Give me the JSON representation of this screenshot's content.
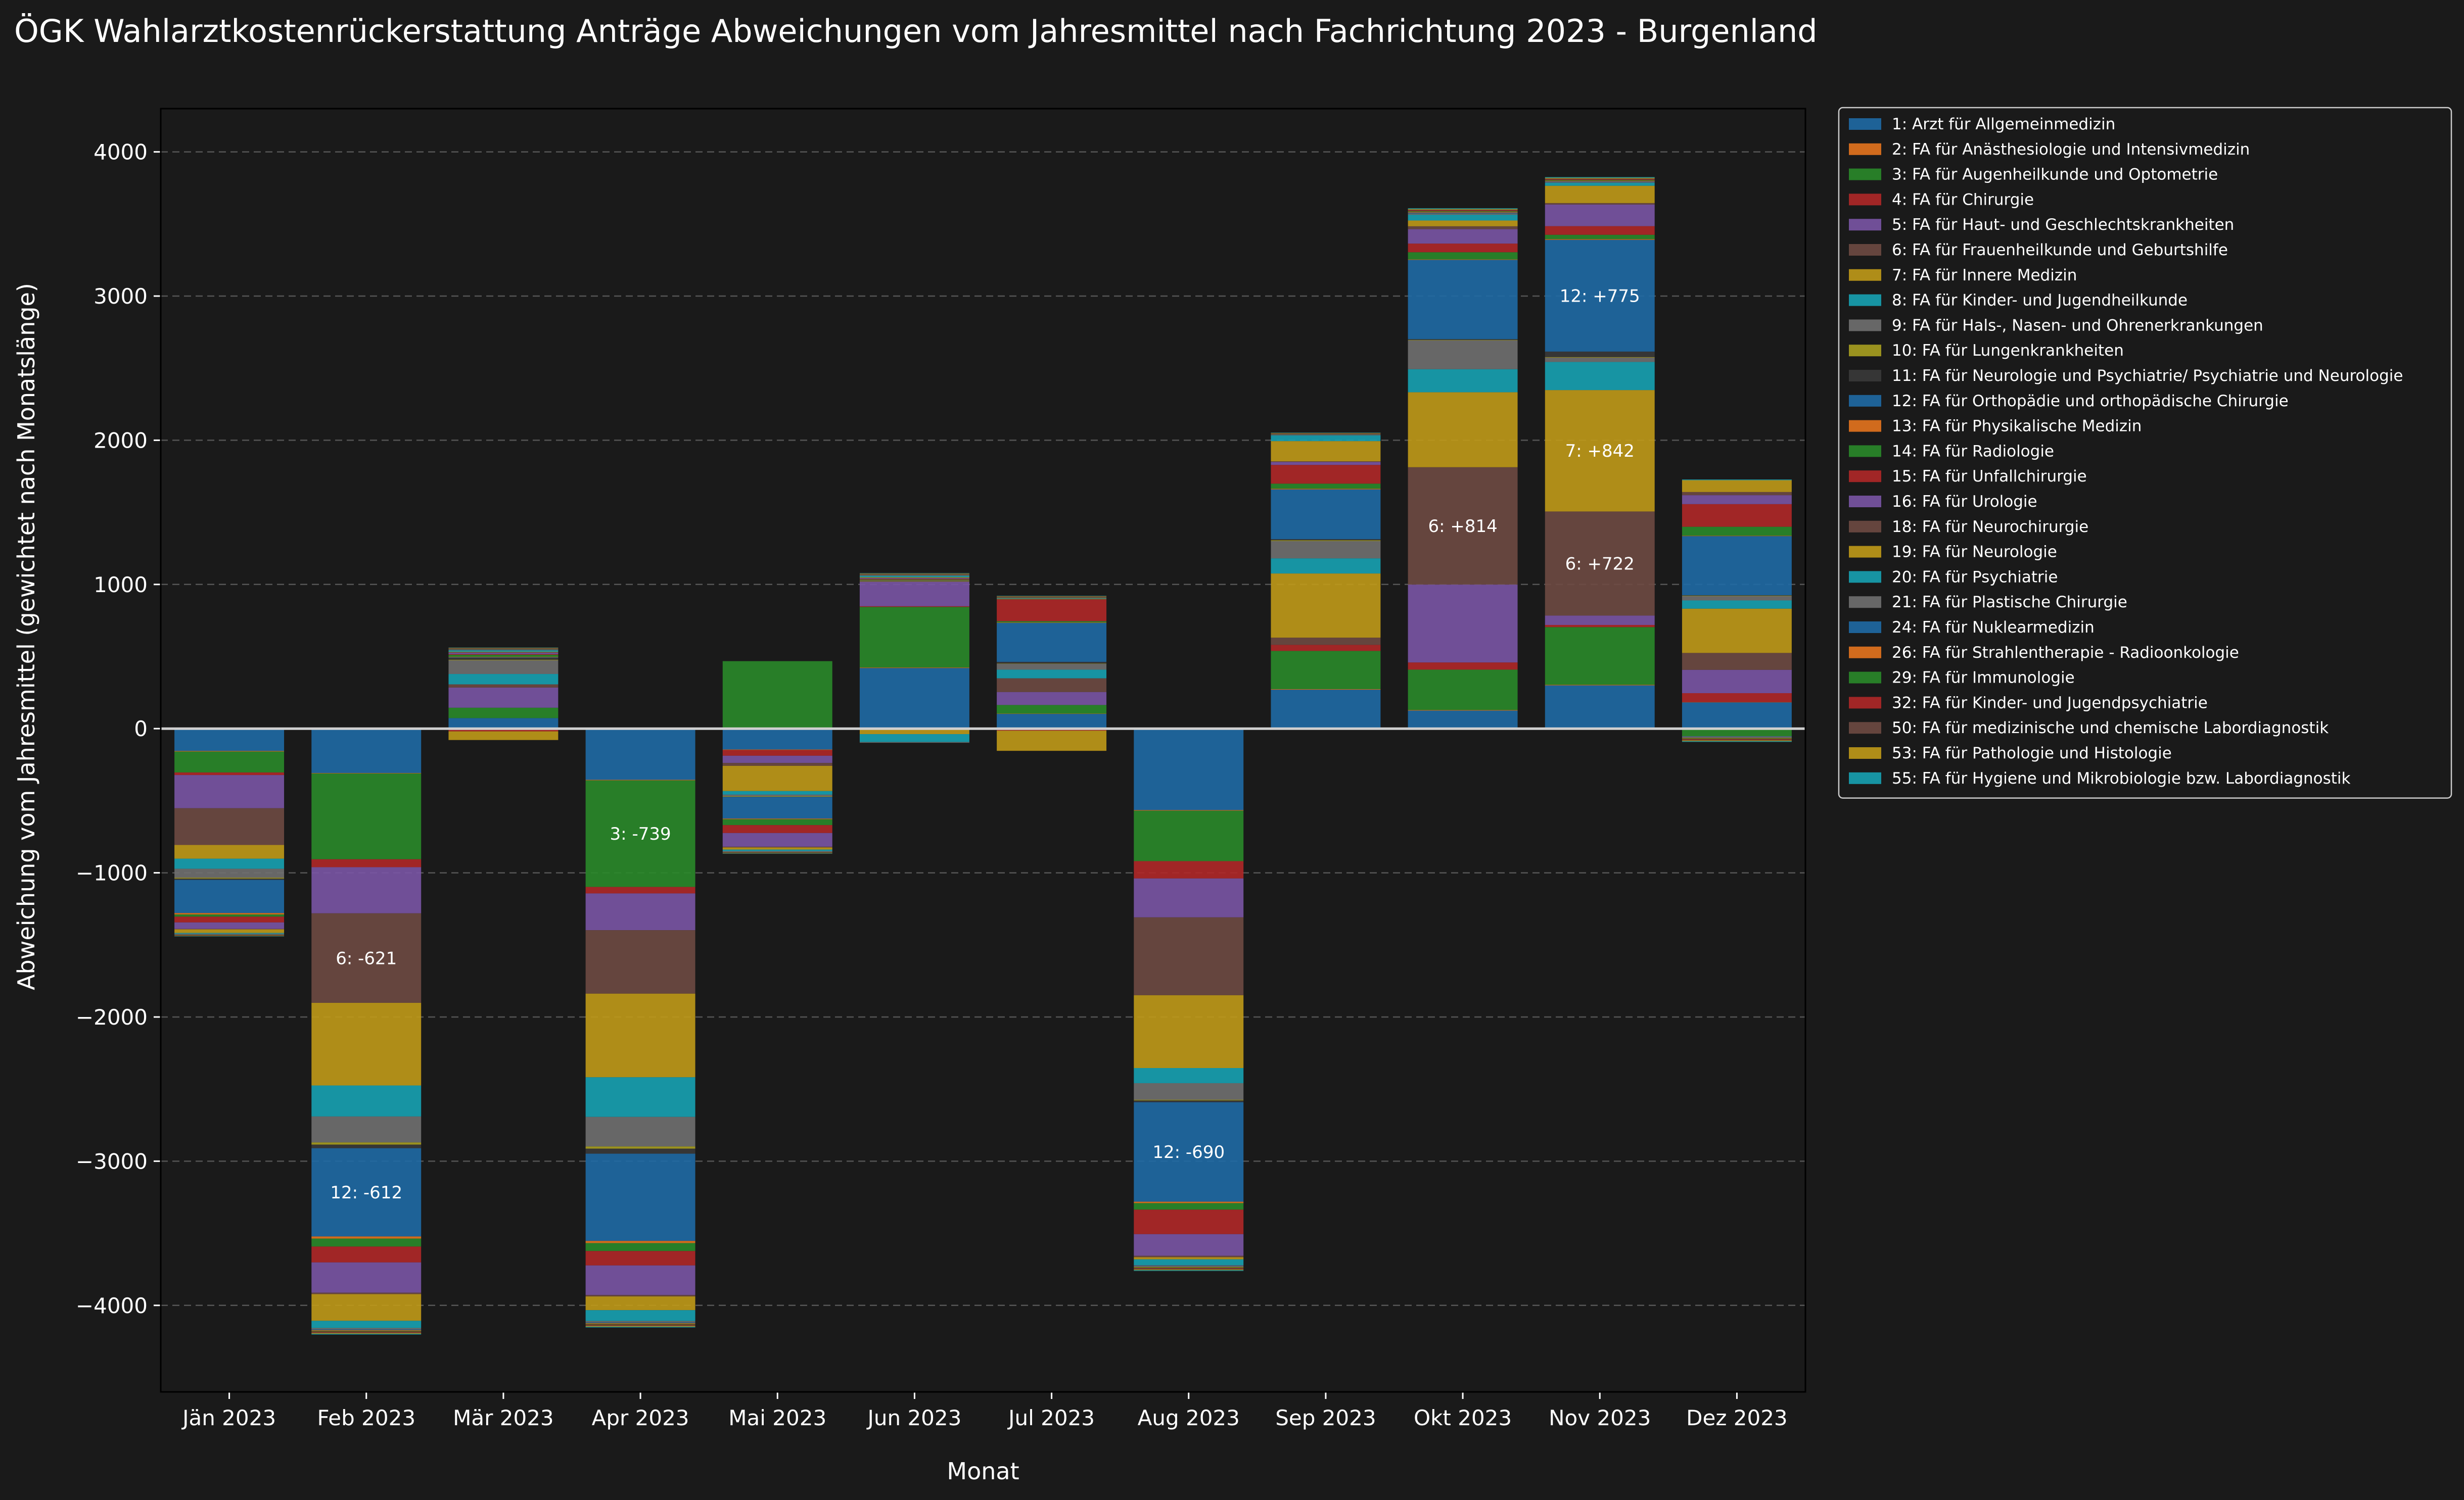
{
  "colors": {
    "background": "#1a1a1a",
    "plot_background": "#1a1a1a",
    "grid": "#555555",
    "zero_line": "#d0d0d0",
    "text": "#ffffff",
    "legend_border": "#cccccc"
  },
  "chart_data": {
    "type": "bar",
    "stacked": true,
    "title": "ÖGK Wahlarztkostenrückerstattung Anträge Abweichungen vom Jahresmittel nach Fachrichtung 2023 - Burgenland",
    "xlabel": "Monat",
    "ylabel": "Abweichung vom Jahresmittel (gewichtet nach Monatslänge)",
    "ylim": [
      -4600,
      4300
    ],
    "yticks": [
      -4000,
      -3000,
      -2000,
      -1000,
      0,
      1000,
      2000,
      3000,
      4000
    ],
    "ytick_labels": [
      "−4000",
      "−3000",
      "−2000",
      "−1000",
      "0",
      "1000",
      "2000",
      "3000",
      "4000"
    ],
    "grid": true,
    "legend_position": "outside-right-top",
    "categories": [
      "Jän 2023",
      "Feb 2023",
      "Mär 2023",
      "Apr 2023",
      "Mai 2023",
      "Jun 2023",
      "Jul 2023",
      "Aug 2023",
      "Sep 2023",
      "Okt 2023",
      "Nov 2023",
      "Dez 2023"
    ],
    "series": [
      {
        "name": "1: FA für Allgemeinmedizin",
        "label": "1: Arzt für Allgemeinmedizin",
        "color": "#1f6aa5",
        "values": [
          -155,
          -308,
          73,
          -355,
          -145,
          420,
          102,
          -565,
          270,
          125,
          300,
          182
        ]
      },
      {
        "name": "2",
        "label": "2: FA für Anästhesiologie und Intensivmedizin",
        "color": "#e6741e",
        "values": [
          -4,
          -3,
          -5,
          -4,
          -3,
          4,
          2,
          -4,
          4,
          4,
          4,
          2
        ]
      },
      {
        "name": "3",
        "label": "3: FA für Augenheilkunde und Optometrie",
        "color": "#2a8a2a",
        "values": [
          -145,
          -595,
          72,
          -739,
          468,
          420,
          60,
          -350,
          265,
          280,
          400,
          -52
        ]
      },
      {
        "name": "4",
        "label": "4: FA für Chirurgie",
        "color": "#b02828",
        "values": [
          -18,
          -55,
          -14,
          -45,
          -40,
          5,
          -14,
          -120,
          42,
          50,
          15,
          62
        ]
      },
      {
        "name": "5",
        "label": "5: FA für Haut- und Geschlechtskrankheiten",
        "color": "#7a55a5",
        "values": [
          -230,
          -320,
          140,
          -255,
          -50,
          170,
          90,
          -270,
          0,
          540,
          65,
          162
        ]
      },
      {
        "name": "6",
        "label": "6: FA für Frauenheilkunde und Geburtshilfe",
        "color": "#6e4a42",
        "values": [
          -255,
          -621,
          22,
          -440,
          -20,
          -8,
          95,
          -540,
          50,
          814,
          722,
          117
        ]
      },
      {
        "name": "7",
        "label": "7: FA für Innere Medizin",
        "color": "#c09a18",
        "values": [
          -95,
          -573,
          -60,
          -580,
          -175,
          -30,
          -140,
          -505,
          445,
          520,
          842,
          307
        ]
      },
      {
        "name": "8",
        "label": "8: FA für Kinder- und Jugendheilkunde",
        "color": "#17a2b2",
        "values": [
          -70,
          -215,
          72,
          -275,
          -25,
          -55,
          60,
          -105,
          105,
          160,
          195,
          57
        ]
      },
      {
        "name": "9",
        "label": "9: FA für Hals-, Nasen- und Ohrenerkrankungen",
        "color": "#707070",
        "values": [
          -62,
          -180,
          95,
          -205,
          -11,
          -5,
          40,
          -115,
          120,
          200,
          30,
          30
        ]
      },
      {
        "name": "10",
        "label": "10: FA für Lungenkrankheiten",
        "color": "#a8a020",
        "values": [
          -6,
          -15,
          4,
          -15,
          -4,
          3,
          2,
          -5,
          5,
          3,
          4,
          3
        ]
      },
      {
        "name": "11",
        "label": "11: FA für Neurologie und Psychiatrie/ Psychiatrie und Neurologie",
        "color": "#3a3a3a",
        "values": [
          -9,
          -25,
          14,
          -35,
          -1,
          2,
          12,
          -12,
          8,
          5,
          38,
          3
        ]
      },
      {
        "name": "12",
        "label": "12: FA für Orthopädie und orthopädische Chirurgie",
        "color": "#1f6aa5",
        "values": [
          -230,
          -612,
          3,
          -605,
          -150,
          2,
          270,
          -690,
          345,
          550,
          775,
          410
        ]
      },
      {
        "name": "13",
        "label": "13: FA für Physikalische Medizin",
        "color": "#e6741e",
        "values": [
          -10,
          -15,
          3,
          -15,
          -5,
          3,
          3,
          -10,
          5,
          3,
          5,
          3
        ]
      },
      {
        "name": "14",
        "label": "14: FA für Radiologie",
        "color": "#2a8a2a",
        "values": [
          -15,
          -55,
          14,
          -55,
          -40,
          5,
          9,
          -45,
          35,
          50,
          30,
          62
        ]
      },
      {
        "name": "15",
        "label": "15: FA für Unfallchirurgie",
        "color": "#b02828",
        "values": [
          -40,
          -110,
          5,
          -100,
          -55,
          4,
          150,
          -170,
          130,
          60,
          60,
          157
        ]
      },
      {
        "name": "16",
        "label": "16: FA für Urologie",
        "color": "#7a55a5",
        "values": [
          -45,
          -210,
          10,
          -205,
          -95,
          5,
          0,
          -150,
          20,
          100,
          150,
          62
        ]
      },
      {
        "name": "18",
        "label": "18: FA für Neurochirurgie",
        "color": "#6e4a42",
        "values": [
          -3,
          -10,
          3,
          -10,
          -5,
          3,
          3,
          -10,
          5,
          20,
          10,
          22
        ]
      },
      {
        "name": "19",
        "label": "19: FA für Neurologie",
        "color": "#c09a18",
        "values": [
          -25,
          -185,
          3,
          -95,
          -15,
          4,
          3,
          -15,
          140,
          40,
          120,
          82
        ]
      },
      {
        "name": "20",
        "label": "20: FA für Psychiatrie",
        "color": "#17a2b2",
        "values": [
          -5,
          -50,
          10,
          -75,
          -10,
          10,
          3,
          -40,
          40,
          40,
          20,
          5
        ]
      },
      {
        "name": "21",
        "label": "21: FA für Plastische Chirurgie",
        "color": "#707070",
        "values": [
          -5,
          -10,
          5,
          -10,
          -5,
          5,
          3,
          -5,
          5,
          10,
          5,
          -5
        ]
      },
      {
        "name": "24",
        "label": "24: FA für Nuklearmedizin",
        "color": "#1f6aa5",
        "values": [
          -2,
          -5,
          2,
          -5,
          -2,
          2,
          2,
          -5,
          2,
          5,
          5,
          -5
        ]
      },
      {
        "name": "26",
        "label": "26: FA für Strahlentherapie - Radioonkologie",
        "color": "#e6741e",
        "values": [
          -2,
          -5,
          2,
          -5,
          -2,
          2,
          2,
          -5,
          2,
          5,
          5,
          -5
        ]
      },
      {
        "name": "29",
        "label": "29: FA für Immunologie",
        "color": "#2a8a2a",
        "values": [
          -2,
          -5,
          2,
          -5,
          -2,
          2,
          2,
          -5,
          2,
          5,
          5,
          -5
        ]
      },
      {
        "name": "32",
        "label": "32: FA für Kinder- und Jugendpsychiatrie",
        "color": "#b02828",
        "values": [
          -2,
          -5,
          2,
          -5,
          -2,
          2,
          2,
          -5,
          2,
          5,
          5,
          -5
        ]
      },
      {
        "name": "50",
        "label": "50: FA für medizinische und chemische Labordiagnostik",
        "color": "#6e4a42",
        "values": [
          -2,
          -5,
          2,
          -5,
          -2,
          2,
          2,
          -5,
          2,
          5,
          5,
          -5
        ]
      },
      {
        "name": "53",
        "label": "53: FA für Pathologie und Histologie",
        "color": "#c09a18",
        "values": [
          -2,
          -5,
          2,
          -5,
          -2,
          2,
          2,
          -5,
          2,
          5,
          5,
          -5
        ]
      },
      {
        "name": "55",
        "label": "55: FA für Hygiene und Mikrobiologie bzw. Labordiagnostik",
        "color": "#17a2b2",
        "values": [
          -2,
          -5,
          2,
          -5,
          -2,
          2,
          2,
          -5,
          2,
          5,
          5,
          -5
        ]
      }
    ],
    "annotations": [
      {
        "category": "Feb 2023",
        "series_index": 5,
        "text": "6: -621"
      },
      {
        "category": "Feb 2023",
        "series_index": 11,
        "text": "12: -612"
      },
      {
        "category": "Apr 2023",
        "series_index": 2,
        "text": "3: -739"
      },
      {
        "category": "Aug 2023",
        "series_index": 11,
        "text": "12: -690"
      },
      {
        "category": "Okt 2023",
        "series_index": 5,
        "text": "6: +814"
      },
      {
        "category": "Nov 2023",
        "series_index": 5,
        "text": "6: +722"
      },
      {
        "category": "Nov 2023",
        "series_index": 6,
        "text": "7: +842"
      },
      {
        "category": "Nov 2023",
        "series_index": 11,
        "text": "12: +775"
      }
    ]
  }
}
